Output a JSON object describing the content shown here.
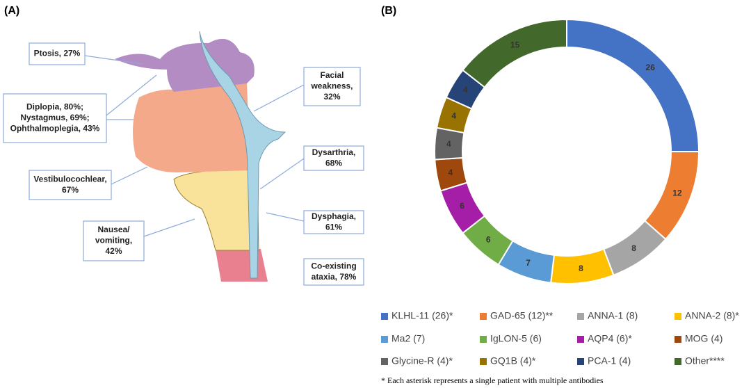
{
  "panel_a": {
    "label": "(A)",
    "callouts": [
      {
        "lines": [
          "Ptosis, 27%"
        ]
      },
      {
        "lines": [
          "Diplopia, 80%;",
          "Nystagmus, 69%;",
          "Ophthalmoplegia, 43%"
        ]
      },
      {
        "lines": [
          "Vestibulocochlear,",
          "67%"
        ]
      },
      {
        "lines": [
          "Nausea/",
          "vomiting,",
          "42%"
        ]
      },
      {
        "lines": [
          "Facial",
          "weakness,",
          "32%"
        ]
      },
      {
        "lines": [
          "Dysarthria,",
          "68%"
        ]
      },
      {
        "lines": [
          "Dysphagia,",
          "61%"
        ]
      },
      {
        "lines": [
          "Co-existing",
          "ataxia, 78%"
        ]
      }
    ]
  },
  "chart_data": {
    "type": "pie",
    "panel_label": "(B)",
    "categories": [
      "KLHL-11 (26)*",
      "GAD-65 (12)**",
      "ANNA-1 (8)",
      "ANNA-2 (8)*",
      "Ma2 (7)",
      "IgLON-5 (6)",
      "AQP4 (6)*",
      "MOG (4)",
      "Glycine-R (4)*",
      "GQ1B (4)*",
      "PCA-1 (4)",
      "Other****"
    ],
    "values": [
      26,
      12,
      8,
      8,
      7,
      6,
      6,
      4,
      4,
      4,
      4,
      15
    ],
    "colors": [
      "#4472c4",
      "#ed7d31",
      "#a5a5a5",
      "#ffc000",
      "#5b9bd5",
      "#70ad47",
      "#a41ea8",
      "#9e480e",
      "#636363",
      "#997300",
      "#264478",
      "#43682b"
    ],
    "footnote": "* Each asterisk represents a single patient with multiple antibodies"
  }
}
